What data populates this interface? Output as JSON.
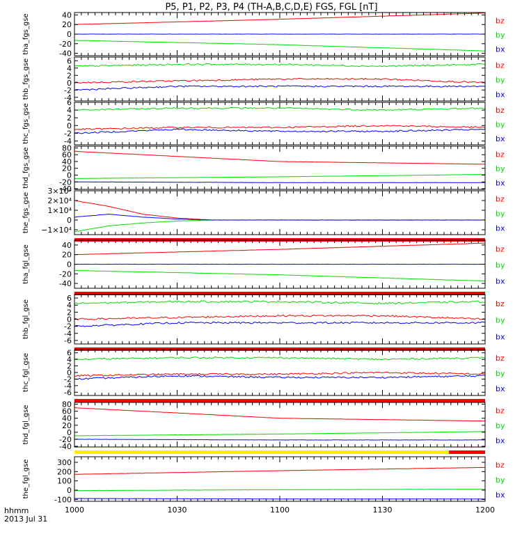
{
  "chart_data": {
    "type": "line",
    "title": "P5, P1, P2, P3, P4 (TH-A,B,C,D,E) FGS, FGL [nT]",
    "date_label": "2013 Jul 31",
    "time_label": "hhmm",
    "x_range": [
      "1000",
      "1200"
    ],
    "x_ticks": [
      "1000",
      "1030",
      "1100",
      "1130",
      "1200"
    ],
    "colors": {
      "bz": "#ff0000",
      "by": "#00dd00",
      "bx": "#0000ff"
    },
    "panels": [
      {
        "name": "tha_fgs_gse",
        "ylim": [
          -45,
          45
        ],
        "y_ticks": [
          "40",
          "20",
          "0",
          "-20",
          "-40"
        ],
        "legend": [
          "bz",
          "by",
          "bx"
        ],
        "series": [
          {
            "name": "bz",
            "x": [
              "1000",
              "1100",
              "1200"
            ],
            "values": [
              20,
              31,
              44
            ]
          },
          {
            "name": "by",
            "x": [
              "1000",
              "1100",
              "1200"
            ],
            "values": [
              -13,
              -22,
              -35
            ]
          },
          {
            "name": "bx",
            "x": [
              "1000",
              "1100",
              "1200"
            ],
            "values": [
              0,
              0,
              0
            ]
          }
        ]
      },
      {
        "name": "thb_fgs_gse",
        "ylim": [
          -5,
          7
        ],
        "y_ticks": [
          "6",
          "4",
          "2",
          "0",
          "-2",
          "-4"
        ],
        "legend": [
          "bz",
          "by",
          "bx"
        ],
        "series": [
          {
            "name": "bz",
            "x": [
              "1000",
              "1030",
              "1100",
              "1130",
              "1200"
            ],
            "values": [
              0,
              0.5,
              1,
              1,
              0
            ]
          },
          {
            "name": "by",
            "x": [
              "1000",
              "1030",
              "1100",
              "1130",
              "1200"
            ],
            "values": [
              4.5,
              5,
              5,
              4.5,
              5
            ]
          },
          {
            "name": "bx",
            "x": [
              "1000",
              "1030",
              "1100",
              "1130",
              "1200"
            ],
            "values": [
              -2,
              -1,
              -1,
              -1,
              -1
            ]
          }
        ]
      },
      {
        "name": "thc_fgs_gse",
        "ylim": [
          -5,
          6
        ],
        "y_ticks": [
          "6",
          "4",
          "2",
          "0",
          "-2",
          "-4"
        ],
        "legend": [
          "bz",
          "by",
          "bx"
        ],
        "series": [
          {
            "name": "bz",
            "x": [
              "1000",
              "1030",
              "1100",
              "1130",
              "1200"
            ],
            "values": [
              -1,
              -0.5,
              -0.5,
              0,
              -0.5
            ]
          },
          {
            "name": "by",
            "x": [
              "1000",
              "1030",
              "1100",
              "1130",
              "1200"
            ],
            "values": [
              4,
              4.5,
              4.5,
              4,
              4.5
            ]
          },
          {
            "name": "bx",
            "x": [
              "1000",
              "1030",
              "1100",
              "1130",
              "1200"
            ],
            "values": [
              -2,
              -1,
              -1.5,
              -1.5,
              -1
            ]
          }
        ]
      },
      {
        "name": "thd_fgs_gse",
        "ylim": [
          -42,
          85
        ],
        "y_ticks": [
          "80",
          "60",
          "40",
          "20",
          "0",
          "-20",
          "-40"
        ],
        "legend": [
          "bz",
          "by",
          "bx"
        ],
        "series": [
          {
            "name": "bz",
            "x": [
              "1000",
              "1100",
              "1200"
            ],
            "values": [
              70,
              40,
              32
            ]
          },
          {
            "name": "by",
            "x": [
              "1000",
              "1100",
              "1200"
            ],
            "values": [
              -10,
              -5,
              2
            ]
          },
          {
            "name": "bx",
            "x": [
              "1000",
              "1100",
              "1200"
            ],
            "values": [
              -20,
              -22,
              -22
            ]
          }
        ]
      },
      {
        "name": "the_fgs_gse",
        "ylim": [
          -15000,
          30000
        ],
        "y_ticks": [
          "3×10⁴",
          "2×10⁴",
          "1×10⁴",
          "0",
          "−1×10⁴"
        ],
        "legend": [
          "bz",
          "by",
          "bx"
        ],
        "series": [
          {
            "name": "bz",
            "x": [
              "1000",
              "1010",
              "1020",
              "1030",
              "1040",
              "1200"
            ],
            "values": [
              20000,
              14000,
              6000,
              2000,
              0,
              0
            ]
          },
          {
            "name": "by",
            "x": [
              "1000",
              "1010",
              "1020",
              "1030",
              "1040",
              "1200"
            ],
            "values": [
              -12000,
              -6000,
              -3000,
              -1000,
              0,
              0
            ]
          },
          {
            "name": "bx",
            "x": [
              "1000",
              "1010",
              "1020",
              "1030",
              "1040",
              "1200"
            ],
            "values": [
              3000,
              6000,
              3000,
              1000,
              0,
              0
            ]
          }
        ],
        "bar": {
          "color": "#ff0000"
        }
      },
      {
        "name": "tha_fgl_gse",
        "ylim": [
          -50,
          50
        ],
        "y_ticks": [
          "40",
          "20",
          "0",
          "-20",
          "-40"
        ],
        "legend": [
          "bz",
          "by",
          "bx"
        ],
        "series": [
          {
            "name": "bz",
            "x": [
              "1000",
              "1100",
              "1200"
            ],
            "values": [
              20,
              31,
              44
            ]
          },
          {
            "name": "by",
            "x": [
              "1000",
              "1100",
              "1200"
            ],
            "values": [
              -13,
              -22,
              -35
            ]
          },
          {
            "name": "bx",
            "x": [
              "1000",
              "1100",
              "1200"
            ],
            "values": [
              0,
              0,
              0
            ]
          }
        ],
        "bar": {
          "color": "#ff0000"
        }
      },
      {
        "name": "thb_fgl_gse",
        "ylim": [
          -7,
          7
        ],
        "y_ticks": [
          "6",
          "4",
          "2",
          "0",
          "-2",
          "-4",
          "-6"
        ],
        "legend": [
          "bz",
          "by",
          "bx"
        ],
        "series": [
          {
            "name": "bz",
            "x": [
              "1000",
              "1030",
              "1100",
              "1130",
              "1200"
            ],
            "values": [
              0,
              0.5,
              1,
              1,
              0
            ]
          },
          {
            "name": "by",
            "x": [
              "1000",
              "1030",
              "1100",
              "1130",
              "1200"
            ],
            "values": [
              4.5,
              5,
              5,
              4.5,
              5
            ]
          },
          {
            "name": "bx",
            "x": [
              "1000",
              "1030",
              "1100",
              "1130",
              "1200"
            ],
            "values": [
              -2,
              -1,
              -1,
              -1,
              -1
            ]
          }
        ],
        "bar": {
          "color": "#ff0000"
        }
      },
      {
        "name": "thc_fgl_gse",
        "ylim": [
          -7,
          7
        ],
        "y_ticks": [
          "6",
          "4",
          "2",
          "0",
          "-2",
          "-4",
          "-6"
        ],
        "legend": [
          "bz",
          "by",
          "bx"
        ],
        "series": [
          {
            "name": "bz",
            "x": [
              "1000",
              "1030",
              "1100",
              "1130",
              "1200"
            ],
            "values": [
              -1,
              -0.5,
              -0.5,
              0,
              -0.5
            ]
          },
          {
            "name": "by",
            "x": [
              "1000",
              "1030",
              "1100",
              "1130",
              "1200"
            ],
            "values": [
              4,
              4.5,
              4.5,
              4,
              4.5
            ]
          },
          {
            "name": "bx",
            "x": [
              "1000",
              "1030",
              "1100",
              "1130",
              "1200"
            ],
            "values": [
              -2,
              -1,
              -1.5,
              -1.5,
              -1
            ]
          }
        ],
        "bar": {
          "color": "#ff0000"
        }
      },
      {
        "name": "thd_fgl_gse",
        "ylim": [
          -42,
          85
        ],
        "y_ticks": [
          "80",
          "60",
          "40",
          "20",
          "0",
          "-20",
          "-40"
        ],
        "legend": [
          "bz",
          "by",
          "bx"
        ],
        "series": [
          {
            "name": "bz",
            "x": [
              "1000",
              "1100",
              "1200"
            ],
            "values": [
              70,
              40,
              32
            ]
          },
          {
            "name": "by",
            "x": [
              "1000",
              "1100",
              "1200"
            ],
            "values": [
              -10,
              -5,
              2
            ]
          },
          {
            "name": "bx",
            "x": [
              "1000",
              "1100",
              "1200"
            ],
            "values": [
              -20,
              -22,
              -22
            ]
          }
        ],
        "bar": {
          "color": "#ffee00",
          "end_color": "#ff0000"
        }
      },
      {
        "name": "the_fgl_gse",
        "ylim": [
          -120,
          360
        ],
        "y_ticks": [
          "300",
          "200",
          "100",
          "0",
          "-100"
        ],
        "legend": [
          "bz",
          "by",
          "bx"
        ],
        "series": [
          {
            "name": "bz",
            "x": [
              "1000",
              "1100",
              "1200"
            ],
            "values": [
              170,
              210,
              245
            ]
          },
          {
            "name": "by",
            "x": [
              "1000",
              "1100",
              "1200"
            ],
            "values": [
              -5,
              5,
              10
            ]
          },
          {
            "name": "bx",
            "x": [
              "1000",
              "1100",
              "1200"
            ],
            "values": [
              -90,
              -95,
              -95
            ]
          }
        ]
      }
    ]
  }
}
